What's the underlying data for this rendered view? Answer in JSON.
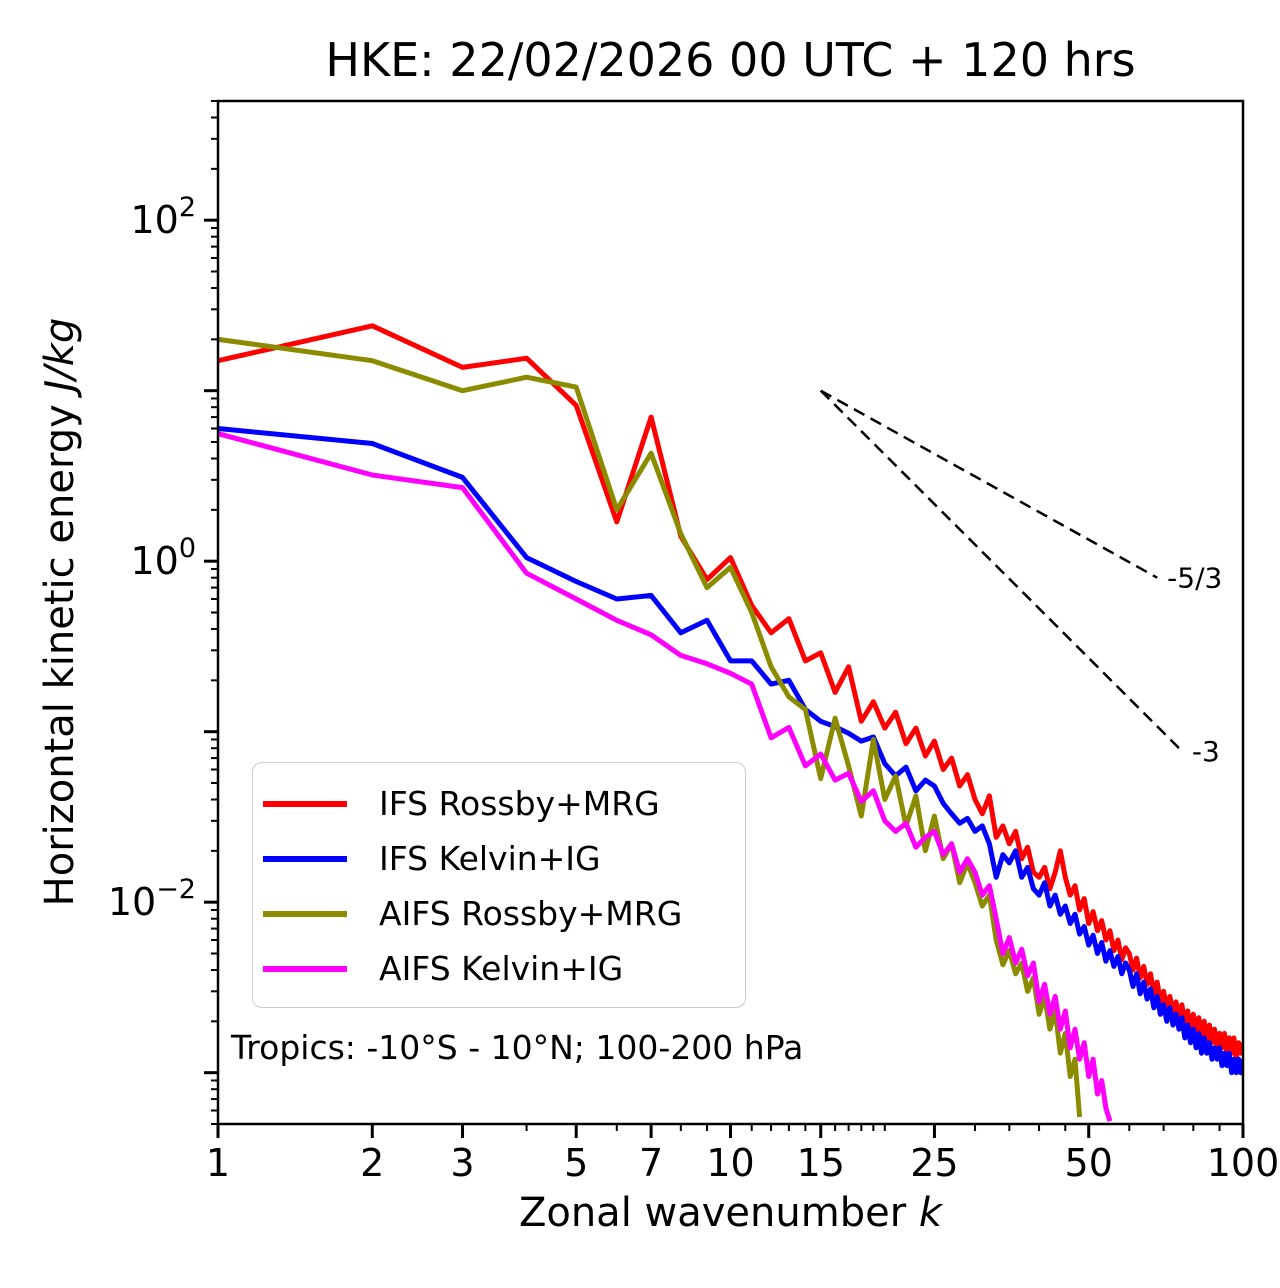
{
  "figure": {
    "title": "HKE: 22/02/2026 00 UTC + 120 hrs",
    "xlabel_text": "Zonal wavenumber ",
    "xlabel_math": "k",
    "ylabel_text": "Horizontal kinetic energy ",
    "ylabel_math": "J/kg",
    "annotation": "Tropics: -10°S - 10°N; 100-200 hPa"
  },
  "legend": {
    "position": "lower-left",
    "items": [
      {
        "id": "ifs-rossby-mrg",
        "label": "IFS Rossby+MRG",
        "color": "#ff0000"
      },
      {
        "id": "ifs-kelvin-ig",
        "label": "IFS Kelvin+IG",
        "color": "#0000ff"
      },
      {
        "id": "aifs-rossby-mrg",
        "label": "AIFS Rossby+MRG",
        "color": "#8b8b00"
      },
      {
        "id": "aifs-kelvin-ig",
        "label": "AIFS Kelvin+IG",
        "color": "#ff00ff"
      }
    ]
  },
  "chart_data": {
    "type": "line",
    "title": "HKE: 22/02/2026 00 UTC + 120 hrs",
    "xlabel": "Zonal wavenumber k",
    "ylabel": "Horizontal kinetic energy J/kg",
    "x_scale": "log",
    "y_scale": "log",
    "xlim": [
      1,
      100
    ],
    "ylim": [
      0.0005,
      500
    ],
    "x_ticks": [
      1,
      2,
      3,
      5,
      7,
      10,
      15,
      25,
      50,
      100
    ],
    "x_minor_ticks": [
      4,
      6,
      8,
      9,
      11,
      12,
      13,
      14,
      16,
      17,
      18,
      19,
      20,
      30,
      35,
      40,
      45,
      60,
      70,
      80,
      90
    ],
    "y_labeled_exponents": [
      2,
      0,
      -2
    ],
    "y_decade_exponents": [
      -3,
      -2,
      -1,
      0,
      1,
      2
    ],
    "grid": false,
    "series": [
      {
        "id": "ifs-rossby-mrg",
        "name": "IFS Rossby+MRG",
        "color": "#ff0000",
        "k_start": 1,
        "values": [
          15.0,
          24.0,
          13.7,
          15.5,
          8.2,
          1.7,
          7.0,
          1.4,
          0.78,
          1.05,
          0.55,
          0.38,
          0.46,
          0.26,
          0.29,
          0.17,
          0.24,
          0.115,
          0.15,
          0.105,
          0.13,
          0.085,
          0.105,
          0.072,
          0.088,
          0.06,
          0.07,
          0.048,
          0.056,
          0.04,
          0.033,
          0.042,
          0.024,
          0.028,
          0.022,
          0.026,
          0.018,
          0.021,
          0.015,
          0.014,
          0.016,
          0.012,
          0.015,
          0.02,
          0.014,
          0.011,
          0.0125,
          0.009,
          0.0105,
          0.0075,
          0.0088,
          0.0068,
          0.0078,
          0.006,
          0.0068,
          0.0052,
          0.006,
          0.0046,
          0.0054,
          0.005,
          0.004,
          0.0047,
          0.0036,
          0.0042,
          0.0033,
          0.0038,
          0.0029,
          0.0034,
          0.0026,
          0.003,
          0.0024,
          0.0028,
          0.0022,
          0.0026,
          0.0021,
          0.0025,
          0.0019,
          0.0023,
          0.0018,
          0.0022,
          0.0017,
          0.0021,
          0.0016,
          0.002,
          0.0015,
          0.0019,
          0.0015,
          0.0018,
          0.0014,
          0.0017,
          0.0014,
          0.0017,
          0.0013,
          0.0016,
          0.0013,
          0.0016,
          0.0012,
          0.0015,
          0.0013,
          0.0015
        ]
      },
      {
        "id": "ifs-kelvin-ig",
        "name": "IFS Kelvin+IG",
        "color": "#0000ff",
        "k_start": 1,
        "values": [
          6.0,
          4.9,
          3.1,
          1.05,
          0.76,
          0.6,
          0.63,
          0.38,
          0.45,
          0.26,
          0.26,
          0.19,
          0.2,
          0.135,
          0.115,
          0.107,
          0.098,
          0.088,
          0.093,
          0.065,
          0.055,
          0.062,
          0.045,
          0.052,
          0.048,
          0.038,
          0.033,
          0.029,
          0.031,
          0.026,
          0.028,
          0.022,
          0.014,
          0.019,
          0.017,
          0.02,
          0.014,
          0.016,
          0.012,
          0.011,
          0.013,
          0.0095,
          0.011,
          0.0085,
          0.0095,
          0.0075,
          0.0085,
          0.0065,
          0.0072,
          0.0056,
          0.0064,
          0.005,
          0.0058,
          0.0045,
          0.0052,
          0.0042,
          0.0048,
          0.0038,
          0.0044,
          0.004,
          0.0032,
          0.0038,
          0.0029,
          0.0034,
          0.0027,
          0.0031,
          0.0024,
          0.0028,
          0.0022,
          0.0025,
          0.002,
          0.0024,
          0.0019,
          0.0022,
          0.0018,
          0.0021,
          0.0016,
          0.0019,
          0.0015,
          0.0018,
          0.0014,
          0.0017,
          0.0013,
          0.0016,
          0.0013,
          0.0015,
          0.0012,
          0.0014,
          0.0012,
          0.0014,
          0.0011,
          0.0013,
          0.0011,
          0.0013,
          0.001,
          0.0012,
          0.001,
          0.0012,
          0.001,
          0.0012
        ]
      },
      {
        "id": "aifs-rossby-mrg",
        "name": "AIFS Rossby+MRG",
        "color": "#8b8b00",
        "k_start": 1,
        "values": [
          20.0,
          15.0,
          10.0,
          12.0,
          10.5,
          2.0,
          4.3,
          1.45,
          0.7,
          0.92,
          0.5,
          0.24,
          0.16,
          0.135,
          0.053,
          0.12,
          0.063,
          0.032,
          0.09,
          0.04,
          0.055,
          0.028,
          0.042,
          0.02,
          0.032,
          0.018,
          0.022,
          0.013,
          0.017,
          0.013,
          0.0095,
          0.011,
          0.006,
          0.0043,
          0.0052,
          0.0038,
          0.0044,
          0.003,
          0.0036,
          0.0022,
          0.0028,
          0.0018,
          0.0023,
          0.0013,
          0.0017,
          0.00095,
          0.0012,
          0.00055
        ]
      },
      {
        "id": "aifs-kelvin-ig",
        "name": "AIFS Kelvin+IG",
        "color": "#ff00ff",
        "k_start": 1,
        "values": [
          5.6,
          3.2,
          2.7,
          0.85,
          0.6,
          0.45,
          0.37,
          0.28,
          0.25,
          0.22,
          0.19,
          0.092,
          0.106,
          0.063,
          0.074,
          0.052,
          0.057,
          0.039,
          0.045,
          0.03,
          0.026,
          0.029,
          0.021,
          0.024,
          0.026,
          0.019,
          0.022,
          0.015,
          0.018,
          0.015,
          0.011,
          0.0125,
          0.008,
          0.005,
          0.0062,
          0.0044,
          0.0053,
          0.0037,
          0.0044,
          0.0026,
          0.0033,
          0.0022,
          0.0028,
          0.0018,
          0.0023,
          0.0014,
          0.0018,
          0.0012,
          0.0015,
          0.00095,
          0.0012,
          0.00075,
          0.0009,
          0.00062,
          0.00052
        ]
      }
    ],
    "reference_lines": [
      {
        "label": "-5/3",
        "slope": -1.667,
        "k": [
          15,
          68
        ],
        "e": [
          10,
          0.8
        ]
      },
      {
        "label": "-3",
        "slope": -3,
        "k": [
          15,
          76
        ],
        "e": [
          10,
          0.077
        ]
      }
    ]
  }
}
